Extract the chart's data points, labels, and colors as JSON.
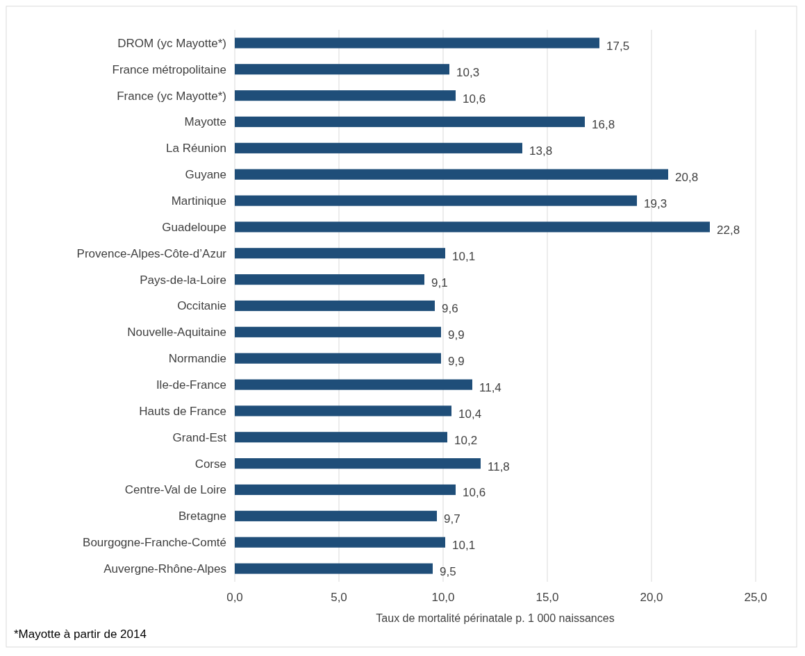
{
  "chart_data": {
    "type": "bar",
    "orientation": "horizontal",
    "xlabel": "Taux de mortalité périnatale p. 1 000 naissances",
    "categories": [
      "DROM (yc Mayotte*)",
      "France métropolitaine",
      "France (yc Mayotte*)",
      "Mayotte",
      "La Réunion",
      "Guyane",
      "Martinique",
      "Guadeloupe",
      "Provence-Alpes-Côte-d’Azur",
      "Pays-de-la-Loire",
      "Occitanie",
      "Nouvelle-Aquitaine",
      "Normandie",
      "Ile-de-France",
      "Hauts de France",
      "Grand-Est",
      "Corse",
      "Centre-Val de Loire",
      "Bretagne",
      "Bourgogne-Franche-Comté",
      "Auvergne-Rhône-Alpes"
    ],
    "values": [
      17.5,
      10.3,
      10.6,
      16.8,
      13.8,
      20.8,
      19.3,
      22.8,
      10.1,
      9.1,
      9.6,
      9.9,
      9.9,
      11.4,
      10.4,
      10.2,
      11.8,
      10.6,
      9.7,
      10.1,
      9.5
    ],
    "value_labels": [
      "17,5",
      "10,3",
      "10,6",
      "16,8",
      "13,8",
      "20,8",
      "19,3",
      "22,8",
      "10,1",
      "9,1",
      "9,6",
      "9,9",
      "9,9",
      "11,4",
      "10,4",
      "10,2",
      "11,8",
      "10,6",
      "9,7",
      "10,1",
      "9,5"
    ],
    "color": "#1f4e79",
    "xlim": [
      0,
      25
    ],
    "xticks": [
      {
        "value": 0,
        "label": "0,0"
      },
      {
        "value": 5,
        "label": "5,0"
      },
      {
        "value": 10,
        "label": "10,0"
      },
      {
        "value": 15,
        "label": "15,0"
      },
      {
        "value": 20,
        "label": "20,0"
      },
      {
        "value": 25,
        "label": "25,0"
      }
    ],
    "grid": "x",
    "annotations": [
      "*Mayotte à partir de 2014"
    ]
  }
}
